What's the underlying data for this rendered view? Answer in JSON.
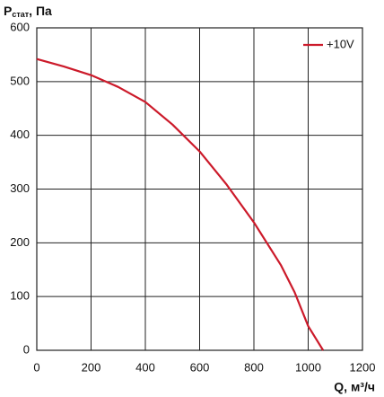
{
  "chart_data": {
    "type": "line",
    "y_label": {
      "main": "P",
      "sub": "стат",
      "rest": ", Па"
    },
    "x_label": "Q, м³/ч",
    "x": [
      0,
      100,
      200,
      300,
      400,
      500,
      600,
      700,
      800,
      900,
      950,
      1000,
      1055
    ],
    "series": [
      {
        "name": "+10V",
        "color": "#cc1a2a",
        "values": [
          542,
          528,
          512,
          490,
          462,
          420,
          370,
          308,
          238,
          158,
          108,
          45,
          0
        ]
      }
    ],
    "xlim": [
      0,
      1200
    ],
    "xticks": [
      0,
      200,
      400,
      600,
      800,
      1000,
      1200
    ],
    "ylim": [
      0,
      600
    ],
    "yticks": [
      0,
      100,
      200,
      300,
      400,
      500,
      600
    ],
    "grid": true,
    "legend": "top-right"
  }
}
